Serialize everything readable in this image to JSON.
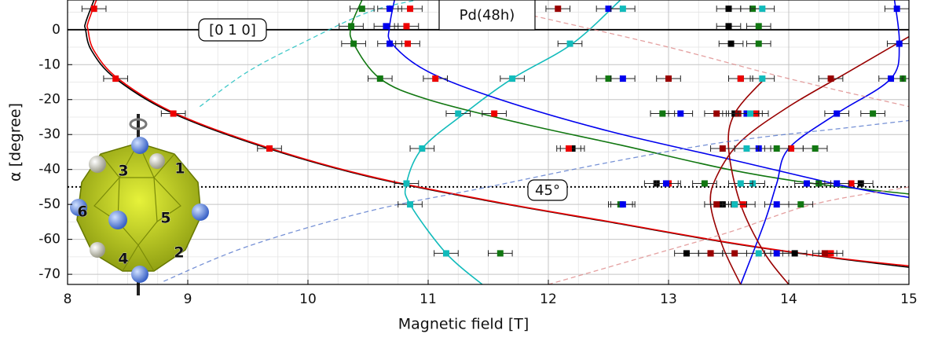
{
  "chart_data": {
    "type": "scatter",
    "xlabel": "Magnetic field [T]",
    "ylabel": "α [degree]",
    "xlim": [
      8,
      15
    ],
    "ylim": [
      -72.9,
      8.5
    ],
    "xticks": [
      8,
      9,
      10,
      11,
      12,
      13,
      14,
      15
    ],
    "yticks": [
      0,
      -10,
      -20,
      -30,
      -40,
      -50,
      -60,
      -70
    ],
    "xminorticks": [
      8.25,
      8.5,
      8.75,
      9.25,
      9.5,
      9.75,
      10.25,
      10.5,
      10.75,
      11.25,
      11.5,
      11.75,
      12.25,
      12.5,
      12.75,
      13.25,
      13.5,
      13.75,
      14.25,
      14.5,
      14.75
    ],
    "yminorticks": [
      5,
      -5,
      -15,
      -25,
      -35,
      -45,
      -55,
      -65
    ],
    "grid": true,
    "annotations": {
      "material": "Pd(48h)",
      "direction": "[0 1 0]",
      "angle": "45°"
    },
    "hlines": [
      {
        "value": 0,
        "style": "solid"
      },
      {
        "value": -45,
        "style": "dotted"
      }
    ],
    "xerr": 0.1,
    "series": [
      {
        "color": "#000000",
        "x": [
          13.5,
          13.5,
          13.52,
          13.6,
          12.2,
          12.9,
          13.45,
          13.15,
          14.05,
          14.6,
          13.55
        ],
        "y": [
          6,
          1,
          -4,
          -14,
          -34,
          -44,
          -50,
          -64,
          -64,
          -44,
          -24
        ]
      },
      {
        "color": "#ee0000",
        "x": [
          8.22,
          10.85,
          10.82,
          10.83,
          8.4,
          11.06,
          8.88,
          11.55,
          9.68,
          12.17,
          13.0,
          13.6,
          13.73,
          14.02,
          13.35,
          14.35,
          13.62,
          14.52
        ],
        "y": [
          6,
          6,
          1,
          -4,
          -14,
          -14,
          -24,
          -24,
          -34,
          -34,
          -44,
          -14,
          -24,
          -34,
          -64,
          -64,
          -50,
          -44
        ]
      },
      {
        "color": "#990000",
        "x": [
          12.08,
          13.0,
          13.4,
          13.45,
          13.4,
          13.58,
          14.35,
          13.35,
          13.55,
          14.3,
          13.55
        ],
        "y": [
          6,
          -14,
          -24,
          -34,
          -50,
          -24,
          -14,
          -64,
          -64,
          -64,
          -50
        ]
      },
      {
        "color": "#117711",
        "x": [
          10.45,
          10.36,
          10.38,
          10.6,
          12.5,
          12.95,
          13.3,
          13.7,
          13.75,
          13.75,
          13.9,
          14.25,
          14.7,
          14.95,
          14.22,
          14.1,
          11.6,
          12.6
        ],
        "y": [
          6,
          1,
          -4,
          -14,
          -14,
          -24,
          -44,
          6,
          1,
          -4,
          -34,
          -44,
          -24,
          -14,
          -34,
          -50,
          -64,
          -50
        ]
      },
      {
        "color": "#0000ee",
        "x": [
          10.68,
          10.65,
          10.68,
          12.5,
          12.62,
          13.1,
          12.98,
          13.75,
          13.65,
          14.9,
          14.92,
          14.85,
          14.4,
          14.15,
          13.9,
          13.9,
          12.62,
          14.4
        ],
        "y": [
          6,
          1,
          -4,
          6,
          -14,
          -24,
          -44,
          -34,
          -24,
          6,
          -4,
          -14,
          -24,
          -44,
          -64,
          -50,
          -50,
          -44
        ]
      },
      {
        "color": "#11bbbb",
        "x": [
          12.62,
          12.18,
          11.7,
          11.25,
          10.95,
          10.82,
          10.85,
          11.15,
          13.78,
          13.78,
          13.68,
          13.65,
          13.7,
          13.55,
          13.75,
          13.6
        ],
        "y": [
          6,
          -4,
          -14,
          -24,
          -34,
          -44,
          -50,
          -64,
          6,
          -14,
          -24,
          -34,
          -44,
          -50,
          -64,
          -44
        ]
      }
    ],
    "curves": [
      {
        "color": "#000000",
        "dashed": false,
        "x": [
          8.22,
          8.15,
          8.15,
          8.2,
          8.4,
          8.88,
          9.67,
          10.5,
          11.5,
          12.5,
          13.5,
          14.3,
          15
        ],
        "y": [
          8.5,
          2,
          0,
          -6,
          -14,
          -24,
          -34,
          -42,
          -49,
          -55,
          -61,
          -65,
          -68
        ]
      },
      {
        "color": "#ee0000",
        "dashed": false,
        "x": [
          8.24,
          8.17,
          8.17,
          8.22,
          8.42,
          8.9,
          9.69,
          10.52,
          11.52,
          12.52,
          13.52,
          14.32,
          15
        ],
        "y": [
          8.5,
          2,
          0,
          -6,
          -14,
          -24,
          -34,
          -42,
          -49,
          -55,
          -61,
          -65,
          -67.6
        ]
      },
      {
        "color": "#11bbbb",
        "dashed": false,
        "x": [
          12.6,
          12.2,
          11.7,
          11.3,
          10.95,
          10.82,
          10.85,
          11.15,
          11.45
        ],
        "y": [
          8.5,
          -4,
          -14,
          -24,
          -34,
          -44,
          -50,
          -64,
          -72.9
        ]
      },
      {
        "color": "#117711",
        "dashed": false,
        "x": [
          10.45,
          10.36,
          10.38,
          10.6,
          11.0,
          11.8,
          12.6,
          13.5,
          14.2,
          15
        ],
        "y": [
          8.5,
          1,
          -4,
          -14,
          -20,
          -27,
          -33,
          -40,
          -44,
          -47
        ]
      },
      {
        "color": "#0000ee",
        "dashed": false,
        "x": [
          10.72,
          10.68,
          10.7,
          11.0,
          11.6,
          12.5,
          13.5,
          14.5,
          15
        ],
        "y": [
          8.5,
          1,
          -4,
          -12,
          -20,
          -29,
          -37,
          -45,
          -48
        ]
      },
      {
        "color": "#0000ee",
        "dashed": false,
        "x": [
          14.88,
          14.92,
          14.85,
          14.4,
          14.0,
          13.9,
          13.8,
          13.6
        ],
        "y": [
          8.5,
          -4,
          -14,
          -24,
          -34,
          -44,
          -55,
          -72.9
        ]
      },
      {
        "color": "#990000",
        "dashed": false,
        "x": [
          13.8,
          13.55,
          13.5,
          13.6,
          13.8,
          14.0
        ],
        "y": [
          -14,
          -24,
          -34,
          -50,
          -64,
          -72.9
        ]
      },
      {
        "color": "#990000",
        "dashed": false,
        "x": [
          15,
          14.5,
          14.0,
          13.6,
          13.4,
          13.35,
          13.45,
          13.6
        ],
        "y": [
          -2,
          -12,
          -22,
          -32,
          -42,
          -50,
          -62,
          -72.9
        ]
      },
      {
        "color": "#11bbbb",
        "dashed": true,
        "x": [
          9.1,
          9.5,
          10.0,
          10.5,
          10.9
        ],
        "y": [
          -22,
          -12,
          -3,
          5,
          8.5
        ]
      },
      {
        "color": "#5577cc",
        "dashed": true,
        "x": [
          8.8,
          9.5,
          10.5,
          11.5,
          12.5,
          13.5,
          14.5,
          15
        ],
        "y": [
          -72,
          -62,
          -52,
          -45,
          -38,
          -32,
          -28,
          -26
        ]
      },
      {
        "color": "#dd8888",
        "dashed": true,
        "x": [
          12.0,
          12.8,
          13.5,
          14.2,
          15
        ],
        "y": [
          -72.9,
          -65,
          -58,
          -50,
          -45
        ]
      },
      {
        "color": "#dd8888",
        "dashed": true,
        "x": [
          11.3,
          12.0,
          13.0,
          14.0,
          15
        ],
        "y": [
          8.5,
          3,
          -5,
          -14,
          -22
        ]
      }
    ],
    "inset_labels": [
      {
        "text": "1",
        "color": "#117711"
      },
      {
        "text": "2",
        "color": "#0000ee"
      },
      {
        "text": "3",
        "color": "#990000"
      },
      {
        "text": "4",
        "color": "#000000"
      },
      {
        "text": "5",
        "color": "#11bbbb"
      },
      {
        "text": "6",
        "color": "#990000"
      }
    ]
  }
}
